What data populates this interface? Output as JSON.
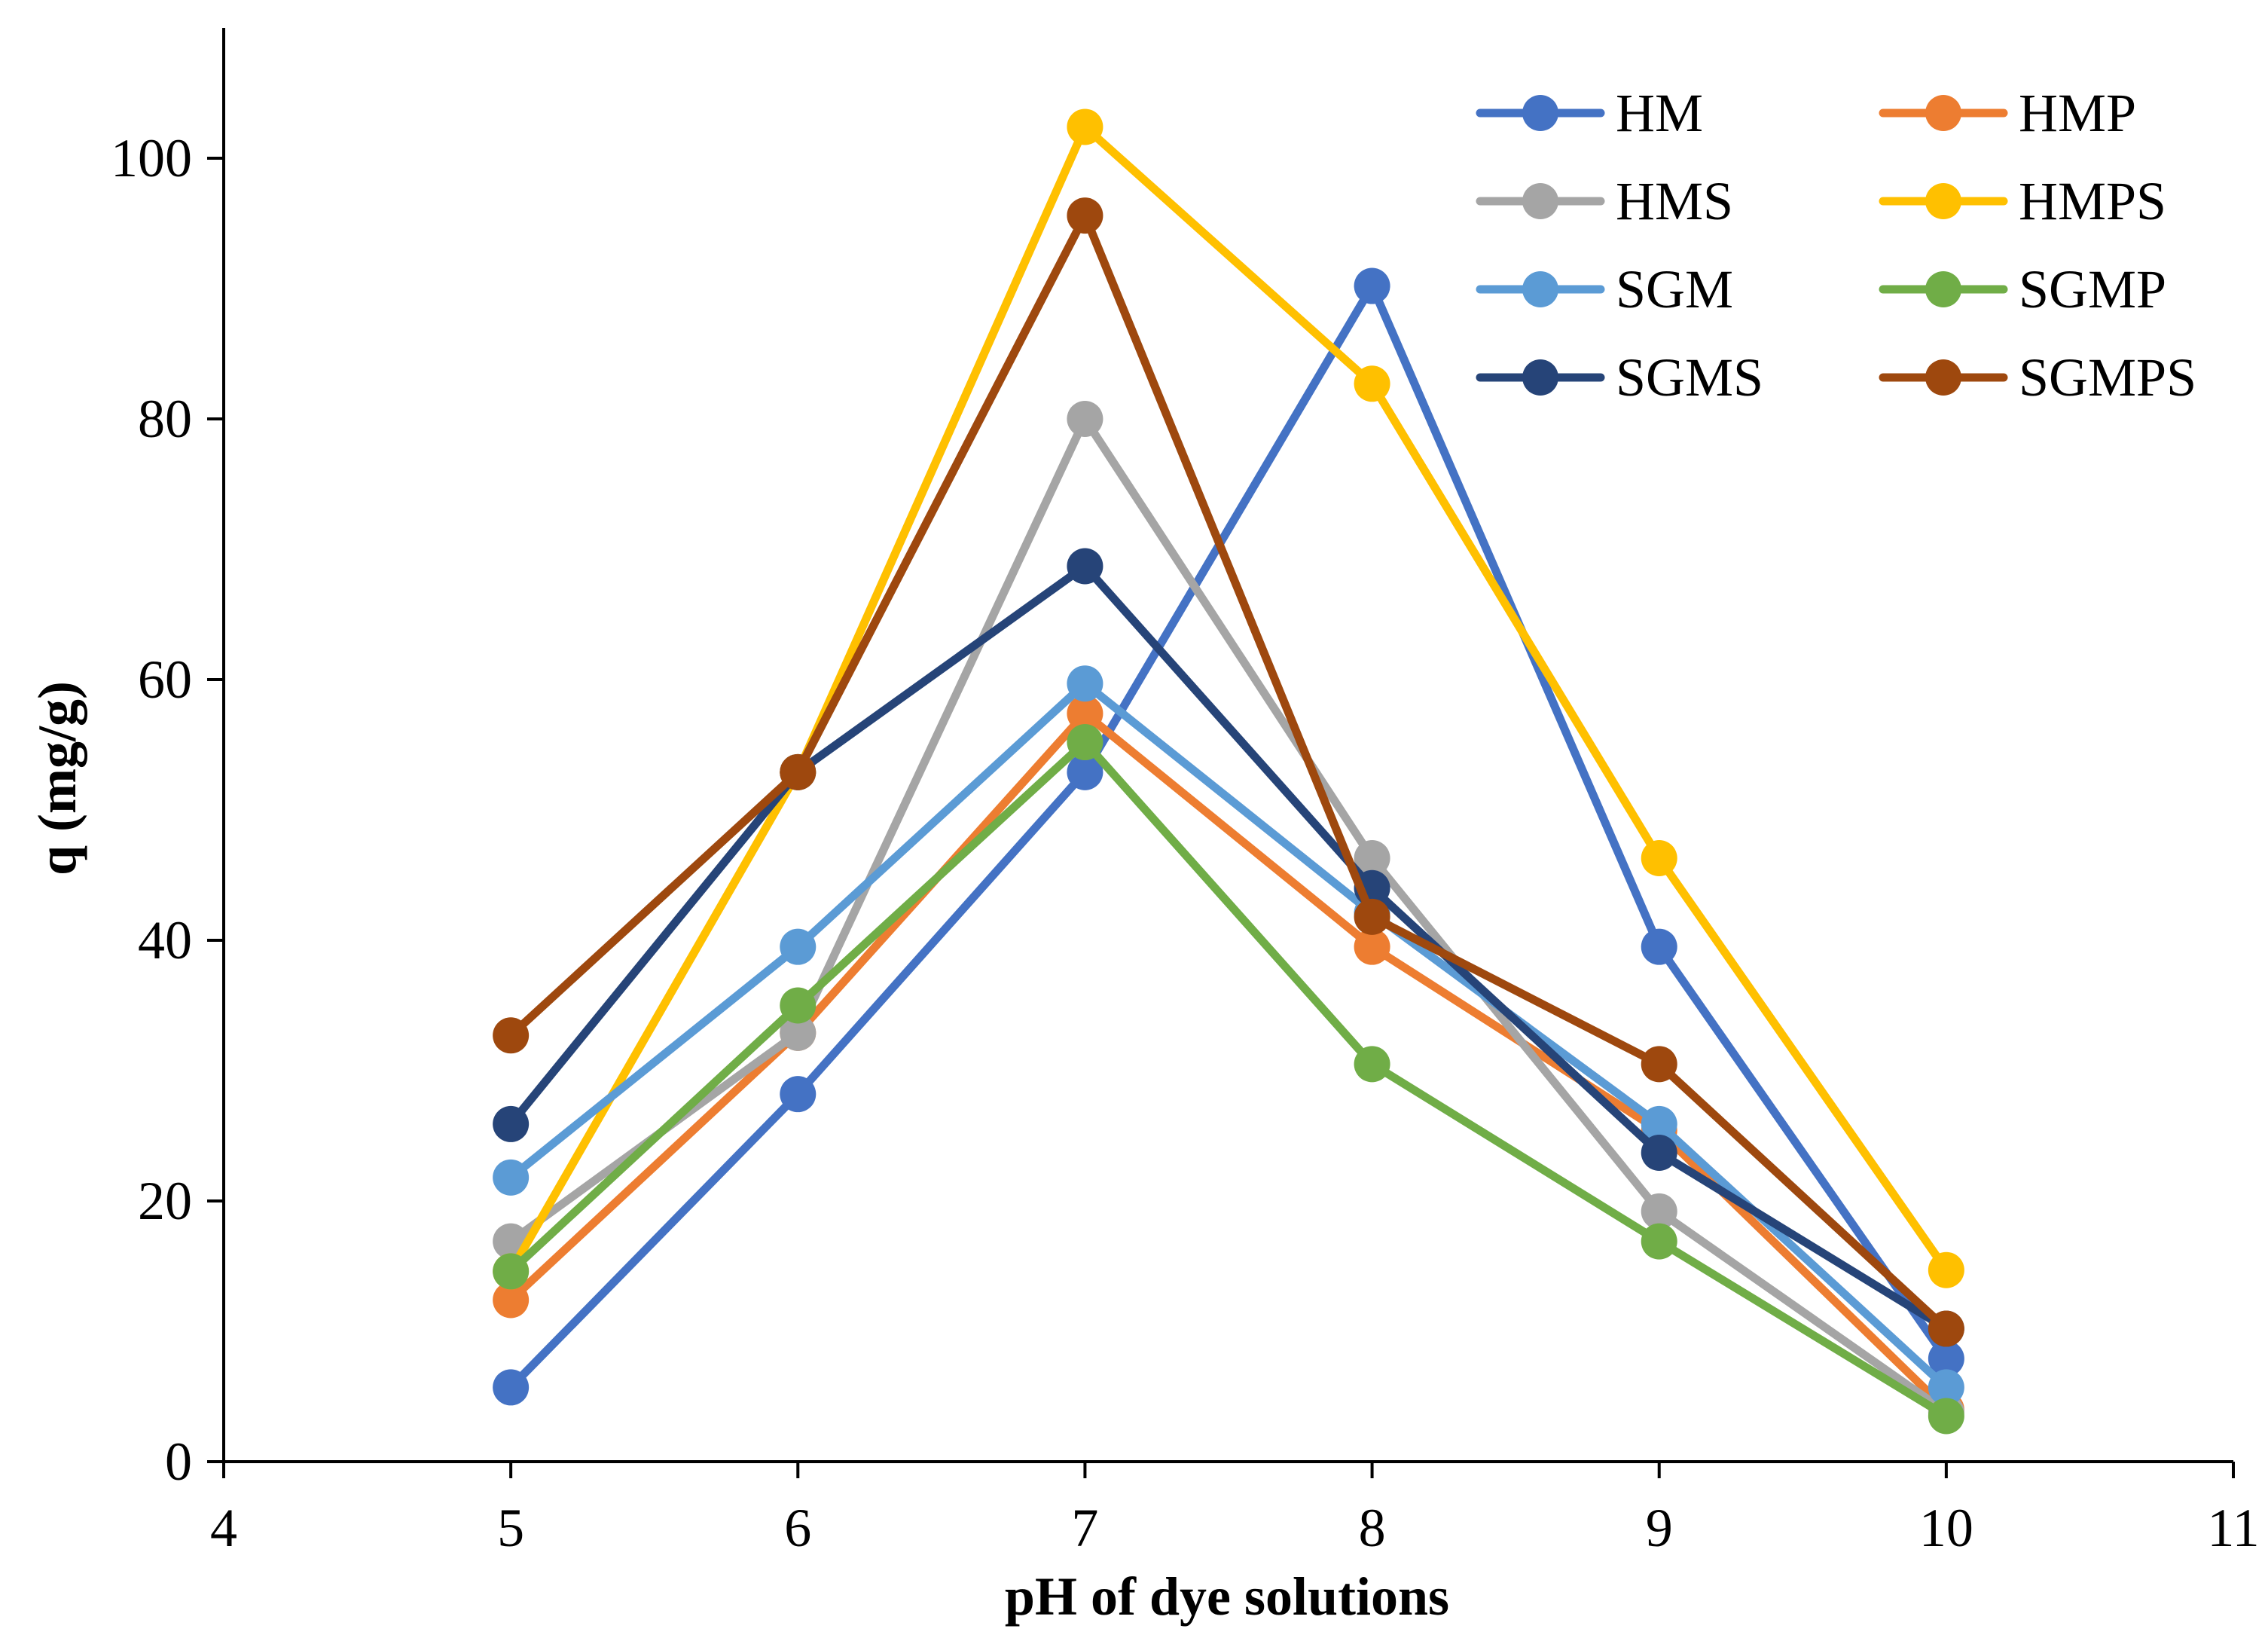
{
  "chart_data": {
    "type": "line",
    "title": "",
    "xlabel": "pH of dye solutions",
    "ylabel": "q (mg/g)",
    "xlim": [
      4,
      11
    ],
    "ylim": [
      0,
      110
    ],
    "xticks": [
      4,
      5,
      6,
      7,
      8,
      9,
      10,
      11
    ],
    "yticks": [
      0,
      20,
      40,
      60,
      80,
      100
    ],
    "grid": false,
    "legend_position": "top-right",
    "x": [
      5,
      6,
      7,
      8,
      9,
      10
    ],
    "series": [
      {
        "name": "HM",
        "color": "#4472C4",
        "values": [
          5.7,
          28.2,
          52.9,
          90.2,
          39.5,
          7.9
        ]
      },
      {
        "name": "HMP",
        "color": "#ED7D31",
        "values": [
          12.4,
          32.9,
          57.4,
          39.5,
          25.4,
          4.0
        ]
      },
      {
        "name": "HMS",
        "color": "#A5A5A5",
        "values": [
          16.9,
          32.9,
          80.0,
          46.3,
          19.2,
          3.8
        ]
      },
      {
        "name": "HMPS",
        "color": "#FFC000",
        "values": [
          14.6,
          52.9,
          102.4,
          82.7,
          46.3,
          14.7
        ]
      },
      {
        "name": "SGM",
        "color": "#5B9BD5",
        "values": [
          21.8,
          39.5,
          59.7,
          42.1,
          25.9,
          5.7
        ]
      },
      {
        "name": "SGMP",
        "color": "#70AD47",
        "values": [
          14.6,
          35.0,
          55.2,
          30.5,
          16.9,
          3.5
        ]
      },
      {
        "name": "SGMS",
        "color": "#264478",
        "values": [
          25.9,
          52.9,
          68.7,
          44.0,
          23.7,
          10.2
        ]
      },
      {
        "name": "SGMPS",
        "color": "#9E480E",
        "values": [
          32.7,
          52.9,
          95.6,
          41.8,
          30.5,
          10.2
        ]
      }
    ]
  }
}
